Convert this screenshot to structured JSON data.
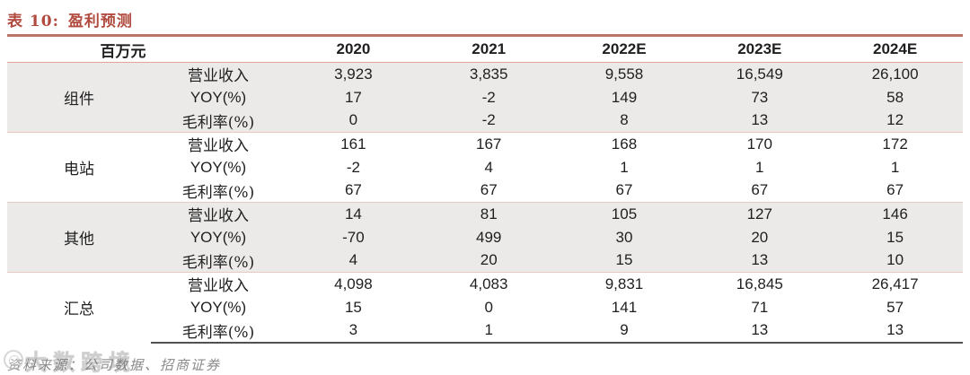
{
  "title": {
    "label": "表 10:",
    "text": "盈利预测"
  },
  "table": {
    "unit": "百万元",
    "columns": [
      "2020",
      "2021",
      "2022E",
      "2023E",
      "2024E"
    ],
    "groups": [
      {
        "name": "组件",
        "rows": [
          {
            "label": "营业收入",
            "values": [
              "3,923",
              "3,835",
              "9,558",
              "16,549",
              "26,100"
            ]
          },
          {
            "label": "YOY(%)",
            "values": [
              "17",
              "-2",
              "149",
              "73",
              "58"
            ]
          },
          {
            "label": "毛利率(%)",
            "values": [
              "0",
              "-2",
              "8",
              "13",
              "12"
            ]
          }
        ]
      },
      {
        "name": "电站",
        "rows": [
          {
            "label": "营业收入",
            "values": [
              "161",
              "167",
              "168",
              "170",
              "172"
            ]
          },
          {
            "label": "YOY(%)",
            "values": [
              "-2",
              "4",
              "1",
              "1",
              "1"
            ]
          },
          {
            "label": "毛利率(%)",
            "values": [
              "67",
              "67",
              "67",
              "67",
              "67"
            ]
          }
        ]
      },
      {
        "name": "其他",
        "rows": [
          {
            "label": "营业收入",
            "values": [
              "14",
              "81",
              "105",
              "127",
              "146"
            ]
          },
          {
            "label": "YOY(%)",
            "values": [
              "-70",
              "499",
              "30",
              "20",
              "15"
            ]
          },
          {
            "label": "毛利率(%)",
            "values": [
              "4",
              "20",
              "15",
              "13",
              "10"
            ]
          }
        ]
      },
      {
        "name": "汇总",
        "rows": [
          {
            "label": "营业收入",
            "values": [
              "4,098",
              "4,083",
              "9,831",
              "16,845",
              "26,417"
            ]
          },
          {
            "label": "YOY(%)",
            "values": [
              "15",
              "0",
              "141",
              "71",
              "57"
            ]
          },
          {
            "label": "毛利率(%)",
            "values": [
              "3",
              "1",
              "9",
              "13",
              "13"
            ]
          }
        ]
      }
    ]
  },
  "footer": {
    "source": "资料来源：公司数据、招商证券",
    "watermark": "大数跨境"
  },
  "colors": {
    "accent": "#B14A3F",
    "rule_strong": "#B97568",
    "rule_light": "#DCAA9C",
    "band": "#EBEAE9",
    "bottom_rule": "#515151"
  }
}
